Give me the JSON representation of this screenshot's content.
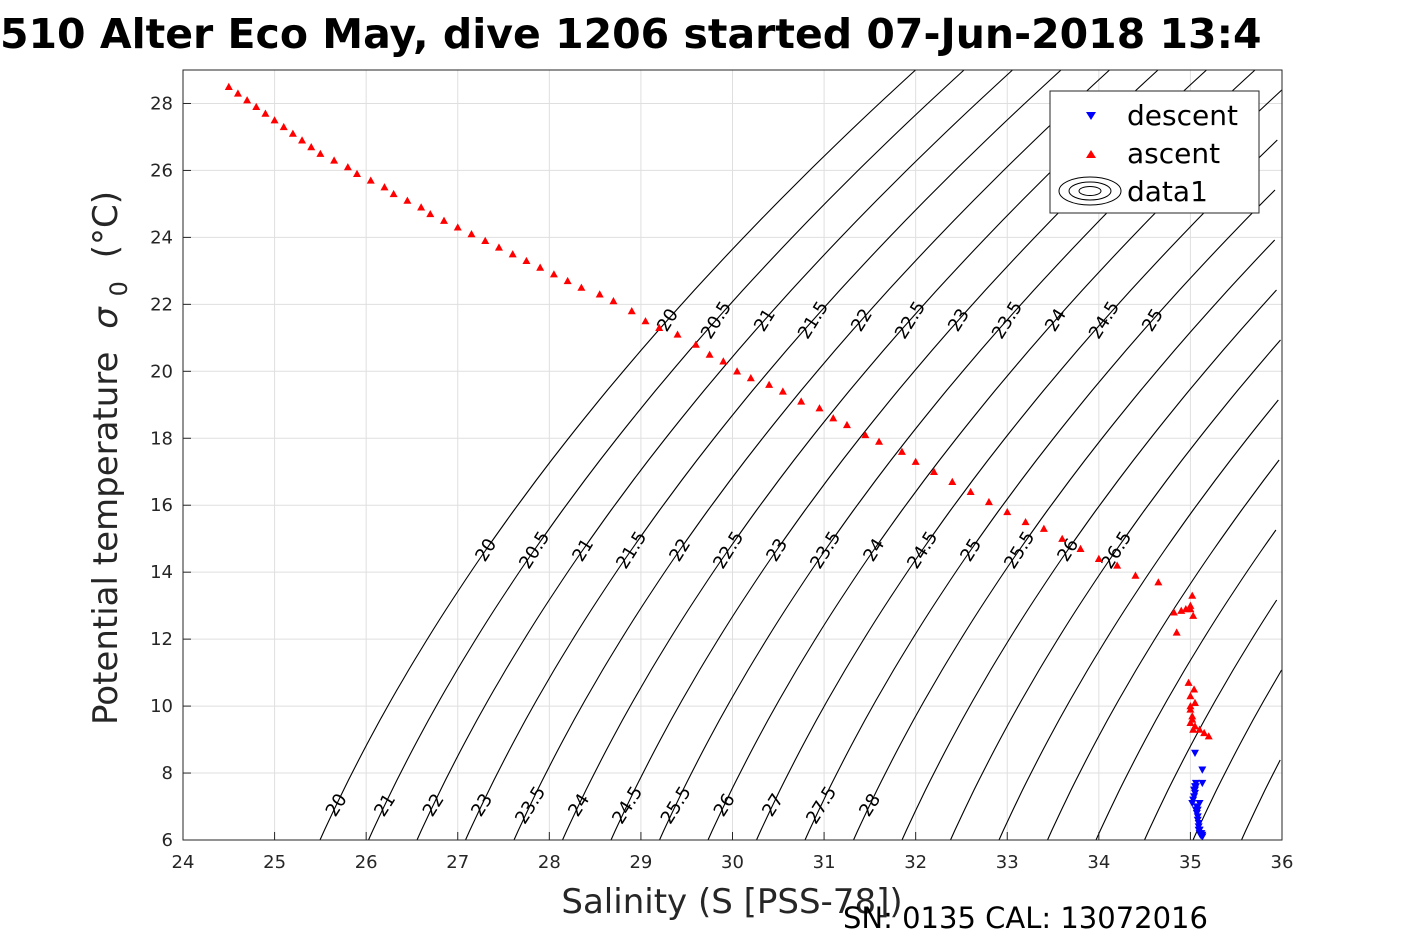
{
  "chart_data": {
    "type": "scatter",
    "title": "510 Alter Eco May, dive 1206 started 07-Jun-2018 13:4",
    "xlabel": "Salinity (S [PSS-78])",
    "ylabel": "Potential temperature",
    "ylabel_symbol": "σ",
    "ylabel_subscript": "0",
    "ylabel_unit": "(°C)",
    "xlim": [
      24,
      36
    ],
    "ylim": [
      6,
      29
    ],
    "xticks": [
      "24",
      "25",
      "26",
      "27",
      "28",
      "29",
      "30",
      "31",
      "32",
      "33",
      "34",
      "35",
      "36"
    ],
    "yticks": [
      "6",
      "8",
      "10",
      "12",
      "14",
      "16",
      "18",
      "20",
      "22",
      "24",
      "26",
      "28"
    ],
    "grid": true,
    "legend_position": "top-right",
    "legend": [
      "descent",
      "ascent",
      "data1"
    ],
    "footnote": "SN: 0135  CAL: 13072016",
    "series": [
      {
        "name": "descent",
        "marker": "down-triangle",
        "color": "#0000ff",
        "x": [
          35.02,
          35.03,
          35.04,
          35.05,
          35.05,
          35.06,
          35.06,
          35.06,
          35.07,
          35.07,
          35.08,
          35.08,
          35.09,
          35.09,
          35.1,
          35.1,
          35.11,
          35.13,
          35.13,
          35.09,
          35.13,
          35.1,
          35.13,
          35.05,
          35.04,
          35.05,
          35.08,
          35.1,
          35.12,
          35.13
        ],
        "y": [
          7.1,
          7.2,
          7.3,
          7.4,
          7.5,
          7.6,
          7.7,
          6.9,
          6.8,
          7.0,
          6.7,
          6.6,
          6.5,
          6.4,
          6.3,
          6.2,
          6.15,
          6.15,
          6.1,
          6.3,
          7.7,
          7.1,
          8.1,
          8.6,
          7.5,
          7.6,
          6.9,
          6.3,
          6.2,
          6.1
        ]
      },
      {
        "name": "ascent",
        "marker": "up-triangle",
        "color": "#ff0000",
        "x": [
          24.5,
          24.6,
          24.7,
          24.8,
          24.9,
          25.0,
          25.1,
          25.2,
          25.3,
          25.4,
          25.5,
          25.65,
          25.8,
          25.9,
          26.05,
          26.2,
          26.3,
          26.45,
          26.6,
          26.7,
          26.85,
          27.0,
          27.15,
          27.3,
          27.45,
          27.6,
          27.75,
          27.9,
          28.05,
          28.2,
          28.35,
          28.55,
          28.7,
          28.9,
          29.05,
          29.2,
          29.4,
          29.6,
          29.75,
          29.9,
          30.05,
          30.2,
          30.4,
          30.55,
          30.75,
          30.95,
          31.1,
          31.25,
          31.45,
          31.6,
          31.85,
          32.0,
          32.2,
          32.4,
          32.6,
          32.8,
          33.0,
          33.2,
          33.4,
          33.6,
          33.8,
          34.0,
          34.2,
          34.4,
          34.65,
          34.82,
          34.9,
          34.95,
          35.0,
          35.02,
          35.0,
          35.03,
          34.98,
          35.04,
          35.0,
          35.05,
          35.0,
          35.02,
          35.0,
          35.03,
          35.0,
          35.02,
          35.05,
          35.1,
          35.15,
          35.2,
          34.85
        ],
        "y": [
          28.5,
          28.3,
          28.1,
          27.9,
          27.7,
          27.5,
          27.3,
          27.1,
          26.9,
          26.7,
          26.5,
          26.3,
          26.1,
          25.9,
          25.7,
          25.5,
          25.3,
          25.1,
          24.9,
          24.7,
          24.5,
          24.3,
          24.1,
          23.9,
          23.7,
          23.5,
          23.3,
          23.1,
          22.9,
          22.7,
          22.5,
          22.3,
          22.1,
          21.8,
          21.5,
          21.3,
          21.1,
          20.8,
          20.5,
          20.3,
          20.0,
          19.8,
          19.6,
          19.4,
          19.1,
          18.9,
          18.6,
          18.4,
          18.1,
          17.9,
          17.6,
          17.3,
          17.0,
          16.7,
          16.4,
          16.1,
          15.8,
          15.5,
          15.3,
          15.0,
          14.7,
          14.4,
          14.2,
          13.9,
          13.7,
          12.8,
          12.85,
          12.9,
          13.0,
          13.3,
          12.9,
          12.7,
          10.7,
          10.5,
          10.3,
          10.1,
          9.9,
          9.7,
          9.5,
          9.3,
          10.0,
          9.6,
          9.4,
          9.3,
          9.2,
          9.1,
          12.2
        ]
      }
    ],
    "contours": {
      "upper_levels": [
        "20",
        "20.5",
        "21",
        "21.5",
        "22",
        "22.5",
        "23",
        "23.5",
        "24",
        "24.5",
        "25"
      ],
      "mid_levels": [
        "20",
        "20.5",
        "21",
        "21.5",
        "22",
        "22.5",
        "23",
        "23.5",
        "24",
        "24.5",
        "25",
        "25.5",
        "26",
        "26.5"
      ],
      "lower_levels": [
        "20",
        "21",
        "22",
        "23",
        "23.5",
        "24",
        "24.5",
        "25.5",
        "26",
        "27",
        "27.5",
        "28"
      ]
    }
  }
}
